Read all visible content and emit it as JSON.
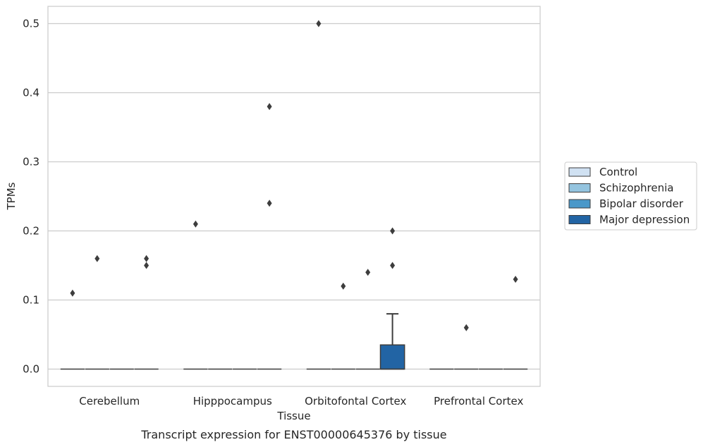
{
  "chart_data": {
    "type": "box",
    "title": "Transcript expression for ENST00000645376 by tissue",
    "xlabel": "Tissue",
    "ylabel": "TPMs",
    "ylim": [
      -0.025,
      0.525
    ],
    "yticks": [
      0.0,
      0.1,
      0.2,
      0.3,
      0.4,
      0.5
    ],
    "ytick_labels": [
      "0.0",
      "0.1",
      "0.2",
      "0.3",
      "0.4",
      "0.5"
    ],
    "grid": "horizontal",
    "legend_position": "right",
    "categories": [
      "Cerebellum",
      "Hipppocampus",
      "Orbitofontal Cortex",
      "Prefrontal Cortex"
    ],
    "series": [
      {
        "name": "Control",
        "color": "#d0e1f2",
        "boxes": [
          {
            "q1": 0,
            "median": 0,
            "q3": 0,
            "whisker_low": 0,
            "whisker_high": 0,
            "outliers": [
              0.11
            ]
          },
          {
            "q1": 0,
            "median": 0,
            "q3": 0,
            "whisker_low": 0,
            "whisker_high": 0,
            "outliers": [
              0.21
            ]
          },
          {
            "q1": 0,
            "median": 0,
            "q3": 0,
            "whisker_low": 0,
            "whisker_high": 0,
            "outliers": [
              0.5
            ]
          },
          {
            "q1": 0,
            "median": 0,
            "q3": 0,
            "whisker_low": 0,
            "whisker_high": 0,
            "outliers": []
          }
        ]
      },
      {
        "name": "Schizophrenia",
        "color": "#94c4df",
        "boxes": [
          {
            "q1": 0,
            "median": 0,
            "q3": 0,
            "whisker_low": 0,
            "whisker_high": 0,
            "outliers": [
              0.16
            ]
          },
          {
            "q1": 0,
            "median": 0,
            "q3": 0,
            "whisker_low": 0,
            "whisker_high": 0,
            "outliers": []
          },
          {
            "q1": 0,
            "median": 0,
            "q3": 0,
            "whisker_low": 0,
            "whisker_high": 0,
            "outliers": [
              0.12
            ]
          },
          {
            "q1": 0,
            "median": 0,
            "q3": 0,
            "whisker_low": 0,
            "whisker_high": 0,
            "outliers": [
              0.06
            ]
          }
        ]
      },
      {
        "name": "Bipolar disorder",
        "color": "#4a98c9",
        "boxes": [
          {
            "q1": 0,
            "median": 0,
            "q3": 0,
            "whisker_low": 0,
            "whisker_high": 0,
            "outliers": []
          },
          {
            "q1": 0,
            "median": 0,
            "q3": 0,
            "whisker_low": 0,
            "whisker_high": 0,
            "outliers": []
          },
          {
            "q1": 0,
            "median": 0,
            "q3": 0,
            "whisker_low": 0,
            "whisker_high": 0,
            "outliers": [
              0.14
            ]
          },
          {
            "q1": 0,
            "median": 0,
            "q3": 0,
            "whisker_low": 0,
            "whisker_high": 0,
            "outliers": []
          }
        ]
      },
      {
        "name": "Major depression",
        "color": "#2264a4",
        "boxes": [
          {
            "q1": 0,
            "median": 0,
            "q3": 0,
            "whisker_low": 0,
            "whisker_high": 0,
            "outliers": [
              0.16,
              0.15
            ]
          },
          {
            "q1": 0,
            "median": 0,
            "q3": 0,
            "whisker_low": 0,
            "whisker_high": 0,
            "outliers": [
              0.38,
              0.24
            ]
          },
          {
            "q1": 0,
            "median": 0,
            "q3": 0.035,
            "whisker_low": 0,
            "whisker_high": 0.08,
            "outliers": [
              0.2,
              0.15
            ]
          },
          {
            "q1": 0,
            "median": 0,
            "q3": 0,
            "whisker_low": 0,
            "whisker_high": 0,
            "outliers": [
              0.13
            ]
          }
        ]
      }
    ]
  }
}
